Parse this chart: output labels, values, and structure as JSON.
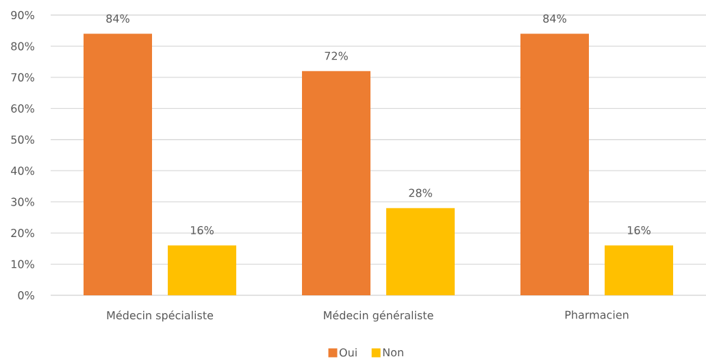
{
  "chart_data": {
    "type": "bar",
    "categories": [
      "Médecin spécialiste",
      "Médecin généraliste",
      "Pharmacien"
    ],
    "series": [
      {
        "name": "Oui",
        "color": "#ed7d31",
        "values": [
          84,
          72,
          84
        ],
        "value_labels": [
          "84%",
          "72%",
          "84%"
        ]
      },
      {
        "name": "Non",
        "color": "#ffc000",
        "values": [
          16,
          28,
          16
        ],
        "value_labels": [
          "16%",
          "28%",
          "16%"
        ]
      }
    ],
    "ylim": [
      0,
      90
    ],
    "yticks": [
      {
        "value": 0,
        "label": "0%"
      },
      {
        "value": 10,
        "label": "10%"
      },
      {
        "value": 20,
        "label": "20%"
      },
      {
        "value": 30,
        "label": "30%"
      },
      {
        "value": 40,
        "label": "40%"
      },
      {
        "value": 50,
        "label": "50%"
      },
      {
        "value": 60,
        "label": "60%"
      },
      {
        "value": 70,
        "label": "70%"
      },
      {
        "value": 80,
        "label": "80%"
      },
      {
        "value": 90,
        "label": "90%"
      }
    ],
    "grid": "y",
    "legend": "bottom"
  }
}
